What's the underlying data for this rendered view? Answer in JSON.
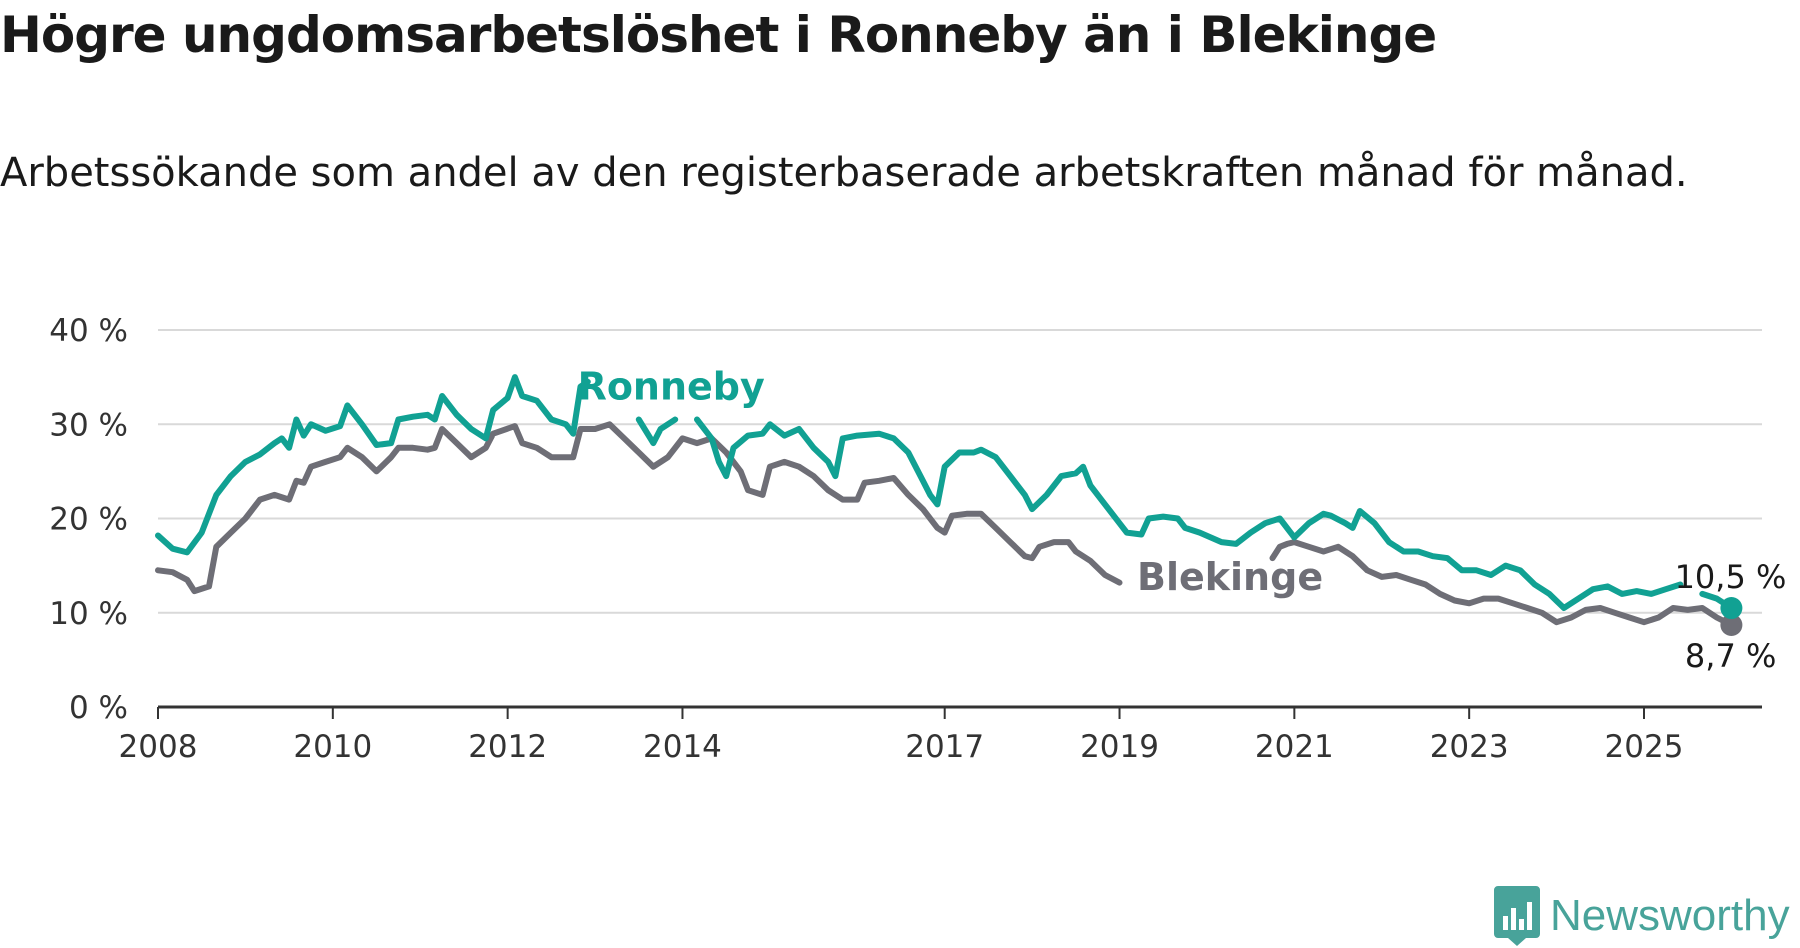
{
  "title": "Högre ungdomsarbetslöshet i Ronneby än i Blekinge",
  "subtitle": "Arbetssökande som andel av den registerbaserade arbetskraften månad för månad.",
  "brand": {
    "name": "Newsworthy",
    "logo_icon": "bar-chart-logo-icon",
    "color": "#48a39a"
  },
  "chart_data": {
    "type": "line",
    "title": "Högre ungdomsarbetslöshet i Ronneby än i Blekinge",
    "subtitle": "Arbetssökande som andel av den registerbaserade arbetskraften månad för månad.",
    "xlabel": "",
    "ylabel": "",
    "x_ticks": [
      "2008",
      "2010",
      "2012",
      "2014",
      "2017",
      "2019",
      "2021",
      "2023",
      "2025"
    ],
    "y_ticks": [
      "0 %",
      "10 %",
      "20 %",
      "30 %",
      "40 %"
    ],
    "ylim": [
      0,
      40
    ],
    "grid": true,
    "legend": "direct labels",
    "series": [
      {
        "name": "Ronneby",
        "color": "#11a193",
        "end_label": "10,5 %",
        "points": [
          [
            "2008-01",
            18.2
          ],
          [
            "2008-03",
            16.8
          ],
          [
            "2008-05",
            16.4
          ],
          [
            "2008-07",
            18.5
          ],
          [
            "2008-09",
            22.5
          ],
          [
            "2008-11",
            24.5
          ],
          [
            "2009-01",
            26.0
          ],
          [
            "2009-03",
            26.8
          ],
          [
            "2009-05",
            28.0
          ],
          [
            "2009-06",
            28.5
          ],
          [
            "2009-07",
            27.5
          ],
          [
            "2009-08",
            30.5
          ],
          [
            "2009-09",
            28.8
          ],
          [
            "2009-10",
            30.0
          ],
          [
            "2009-12",
            29.3
          ],
          [
            "2010-02",
            29.8
          ],
          [
            "2010-03",
            32.0
          ],
          [
            "2010-05",
            30.0
          ],
          [
            "2010-07",
            27.8
          ],
          [
            "2010-09",
            28.0
          ],
          [
            "2010-10",
            30.5
          ],
          [
            "2010-12",
            30.8
          ],
          [
            "2011-02",
            31.0
          ],
          [
            "2011-03",
            30.5
          ],
          [
            "2011-04",
            33.0
          ],
          [
            "2011-06",
            31.0
          ],
          [
            "2011-08",
            29.5
          ],
          [
            "2011-10",
            28.5
          ],
          [
            "2011-11",
            31.5
          ],
          [
            "2012-01",
            32.8
          ],
          [
            "2012-02",
            35.0
          ],
          [
            "2012-03",
            33.0
          ],
          [
            "2012-05",
            32.5
          ],
          [
            "2012-07",
            30.5
          ],
          [
            "2012-09",
            30.0
          ],
          [
            "2012-10",
            29.0
          ],
          [
            "2012-11",
            34.0
          ],
          [
            "2012-12",
            34.5
          ],
          [
            null,
            null
          ],
          [
            "2013-07",
            30.5
          ],
          [
            "2013-09",
            28.0
          ],
          [
            "2013-10",
            29.5
          ],
          [
            "2013-12",
            30.5
          ],
          [
            null,
            null
          ],
          [
            "2014-03",
            30.5
          ],
          [
            "2014-05",
            28.5
          ],
          [
            "2014-06",
            26.0
          ],
          [
            "2014-07",
            24.5
          ],
          [
            "2014-08",
            27.5
          ],
          [
            "2014-10",
            28.8
          ],
          [
            "2014-12",
            29.0
          ],
          [
            "2015-01",
            30.0
          ],
          [
            "2015-03",
            28.8
          ],
          [
            "2015-05",
            29.5
          ],
          [
            "2015-07",
            27.5
          ],
          [
            "2015-09",
            26.0
          ],
          [
            "2015-10",
            24.5
          ],
          [
            "2015-11",
            28.5
          ],
          [
            "2016-01",
            28.8
          ],
          [
            "2016-04",
            29.0
          ],
          [
            "2016-06",
            28.5
          ],
          [
            "2016-08",
            27.0
          ],
          [
            "2016-10",
            24.0
          ],
          [
            "2016-11",
            22.5
          ],
          [
            "2016-12",
            21.5
          ],
          [
            "2017-01",
            25.5
          ],
          [
            "2017-03",
            27.0
          ],
          [
            "2017-05",
            27.0
          ],
          [
            "2017-06",
            27.3
          ],
          [
            "2017-08",
            26.5
          ],
          [
            "2017-10",
            24.5
          ],
          [
            "2017-12",
            22.5
          ],
          [
            "2018-01",
            21.0
          ],
          [
            "2018-03",
            22.5
          ],
          [
            "2018-05",
            24.5
          ],
          [
            "2018-07",
            24.8
          ],
          [
            "2018-08",
            25.5
          ],
          [
            "2018-09",
            23.5
          ],
          [
            "2018-11",
            21.5
          ],
          [
            "2019-01",
            19.5
          ],
          [
            "2019-02",
            18.5
          ],
          [
            "2019-04",
            18.3
          ],
          [
            "2019-05",
            20.0
          ],
          [
            "2019-07",
            20.2
          ],
          [
            "2019-09",
            20.0
          ],
          [
            "2019-10",
            19.0
          ],
          [
            "2019-12",
            18.5
          ],
          [
            "2020-03",
            17.5
          ],
          [
            "2020-05",
            17.3
          ],
          [
            "2020-07",
            18.5
          ],
          [
            "2020-09",
            19.5
          ],
          [
            "2020-11",
            20.0
          ],
          [
            "2021-01",
            18.0
          ],
          [
            "2021-03",
            19.5
          ],
          [
            "2021-05",
            20.5
          ],
          [
            "2021-06",
            20.3
          ],
          [
            "2021-08",
            19.5
          ],
          [
            "2021-09",
            19.0
          ],
          [
            "2021-10",
            20.8
          ],
          [
            "2021-12",
            19.5
          ],
          [
            "2022-02",
            17.5
          ],
          [
            "2022-04",
            16.5
          ],
          [
            "2022-06",
            16.5
          ],
          [
            "2022-08",
            16.0
          ],
          [
            "2022-10",
            15.8
          ],
          [
            "2022-12",
            14.5
          ],
          [
            "2023-02",
            14.5
          ],
          [
            "2023-04",
            14.0
          ],
          [
            "2023-06",
            15.0
          ],
          [
            "2023-08",
            14.5
          ],
          [
            "2023-10",
            13.0
          ],
          [
            "2023-12",
            12.0
          ],
          [
            "2024-02",
            10.5
          ],
          [
            "2024-04",
            11.5
          ],
          [
            "2024-06",
            12.5
          ],
          [
            "2024-08",
            12.8
          ],
          [
            "2024-10",
            12.0
          ],
          [
            "2024-12",
            12.3
          ],
          [
            "2025-02",
            12.0
          ],
          [
            "2025-04",
            12.5
          ],
          [
            "2025-06",
            13.0
          ],
          [
            null,
            null
          ],
          [
            "2025-09",
            12.0
          ],
          [
            "2025-11",
            11.5
          ],
          [
            "2026-01",
            10.5
          ]
        ]
      },
      {
        "name": "Blekinge",
        "color": "#6e6e76",
        "end_label": "8,7 %",
        "points": [
          [
            "2008-01",
            14.5
          ],
          [
            "2008-03",
            14.3
          ],
          [
            "2008-05",
            13.5
          ],
          [
            "2008-06",
            12.3
          ],
          [
            "2008-08",
            12.8
          ],
          [
            "2008-09",
            17.0
          ],
          [
            "2008-11",
            18.5
          ],
          [
            "2009-01",
            20.0
          ],
          [
            "2009-03",
            22.0
          ],
          [
            "2009-05",
            22.5
          ],
          [
            "2009-07",
            22.0
          ],
          [
            "2009-08",
            24.0
          ],
          [
            "2009-09",
            23.8
          ],
          [
            "2009-10",
            25.5
          ],
          [
            "2009-12",
            26.0
          ],
          [
            "2010-02",
            26.5
          ],
          [
            "2010-03",
            27.5
          ],
          [
            "2010-05",
            26.5
          ],
          [
            "2010-07",
            25.0
          ],
          [
            "2010-09",
            26.5
          ],
          [
            "2010-10",
            27.5
          ],
          [
            "2010-12",
            27.5
          ],
          [
            "2011-02",
            27.3
          ],
          [
            "2011-03",
            27.5
          ],
          [
            "2011-04",
            29.5
          ],
          [
            "2011-06",
            28.0
          ],
          [
            "2011-08",
            26.5
          ],
          [
            "2011-10",
            27.5
          ],
          [
            "2011-11",
            29.0
          ],
          [
            "2012-02",
            29.8
          ],
          [
            "2012-03",
            28.0
          ],
          [
            "2012-05",
            27.5
          ],
          [
            "2012-07",
            26.5
          ],
          [
            "2012-09",
            26.5
          ],
          [
            "2012-10",
            26.5
          ],
          [
            "2012-11",
            29.5
          ],
          [
            "2013-01",
            29.5
          ],
          [
            "2013-03",
            30.0
          ],
          [
            "2013-05",
            28.5
          ],
          [
            "2013-07",
            27.0
          ],
          [
            "2013-09",
            25.5
          ],
          [
            "2013-11",
            26.5
          ],
          [
            "2014-01",
            28.5
          ],
          [
            "2014-03",
            28.0
          ],
          [
            "2014-05",
            28.5
          ],
          [
            "2014-07",
            27.0
          ],
          [
            "2014-09",
            25.0
          ],
          [
            "2014-10",
            23.0
          ],
          [
            "2014-12",
            22.5
          ],
          [
            "2015-01",
            25.5
          ],
          [
            "2015-03",
            26.0
          ],
          [
            "2015-05",
            25.5
          ],
          [
            "2015-07",
            24.5
          ],
          [
            "2015-09",
            23.0
          ],
          [
            "2015-11",
            22.0
          ],
          [
            "2016-01",
            22.0
          ],
          [
            "2016-02",
            23.8
          ],
          [
            "2016-04",
            24.0
          ],
          [
            "2016-06",
            24.3
          ],
          [
            "2016-08",
            22.5
          ],
          [
            "2016-10",
            21.0
          ],
          [
            "2016-12",
            19.0
          ],
          [
            "2017-01",
            18.5
          ],
          [
            "2017-02",
            20.3
          ],
          [
            "2017-04",
            20.5
          ],
          [
            "2017-06",
            20.5
          ],
          [
            "2017-08",
            19.0
          ],
          [
            "2017-10",
            17.5
          ],
          [
            "2017-12",
            16.0
          ],
          [
            "2018-01",
            15.8
          ],
          [
            "2018-02",
            17.0
          ],
          [
            "2018-04",
            17.5
          ],
          [
            "2018-06",
            17.5
          ],
          [
            "2018-07",
            16.5
          ],
          [
            "2018-09",
            15.5
          ],
          [
            "2018-11",
            14.0
          ],
          [
            "2019-01",
            13.2
          ],
          [
            null,
            null
          ],
          [
            "2020-10",
            15.8
          ],
          [
            "2020-11",
            17.0
          ],
          [
            "2020-12",
            17.3
          ],
          [
            "2021-01",
            17.5
          ],
          [
            "2021-03",
            17.0
          ],
          [
            "2021-05",
            16.5
          ],
          [
            "2021-07",
            17.0
          ],
          [
            "2021-09",
            16.0
          ],
          [
            "2021-11",
            14.5
          ],
          [
            "2022-01",
            13.8
          ],
          [
            "2022-03",
            14.0
          ],
          [
            "2022-05",
            13.5
          ],
          [
            "2022-07",
            13.0
          ],
          [
            "2022-09",
            12.0
          ],
          [
            "2022-11",
            11.3
          ],
          [
            "2023-01",
            11.0
          ],
          [
            "2023-03",
            11.5
          ],
          [
            "2023-05",
            11.5
          ],
          [
            "2023-07",
            11.0
          ],
          [
            "2023-09",
            10.5
          ],
          [
            "2023-11",
            10.0
          ],
          [
            "2024-01",
            9.0
          ],
          [
            "2024-03",
            9.5
          ],
          [
            "2024-05",
            10.3
          ],
          [
            "2024-07",
            10.5
          ],
          [
            "2024-09",
            10.0
          ],
          [
            "2024-11",
            9.5
          ],
          [
            "2025-01",
            9.0
          ],
          [
            "2025-03",
            9.5
          ],
          [
            "2025-05",
            10.5
          ],
          [
            "2025-07",
            10.3
          ],
          [
            "2025-09",
            10.5
          ],
          [
            "2025-11",
            9.5
          ],
          [
            "2026-01",
            8.7
          ]
        ]
      }
    ]
  }
}
